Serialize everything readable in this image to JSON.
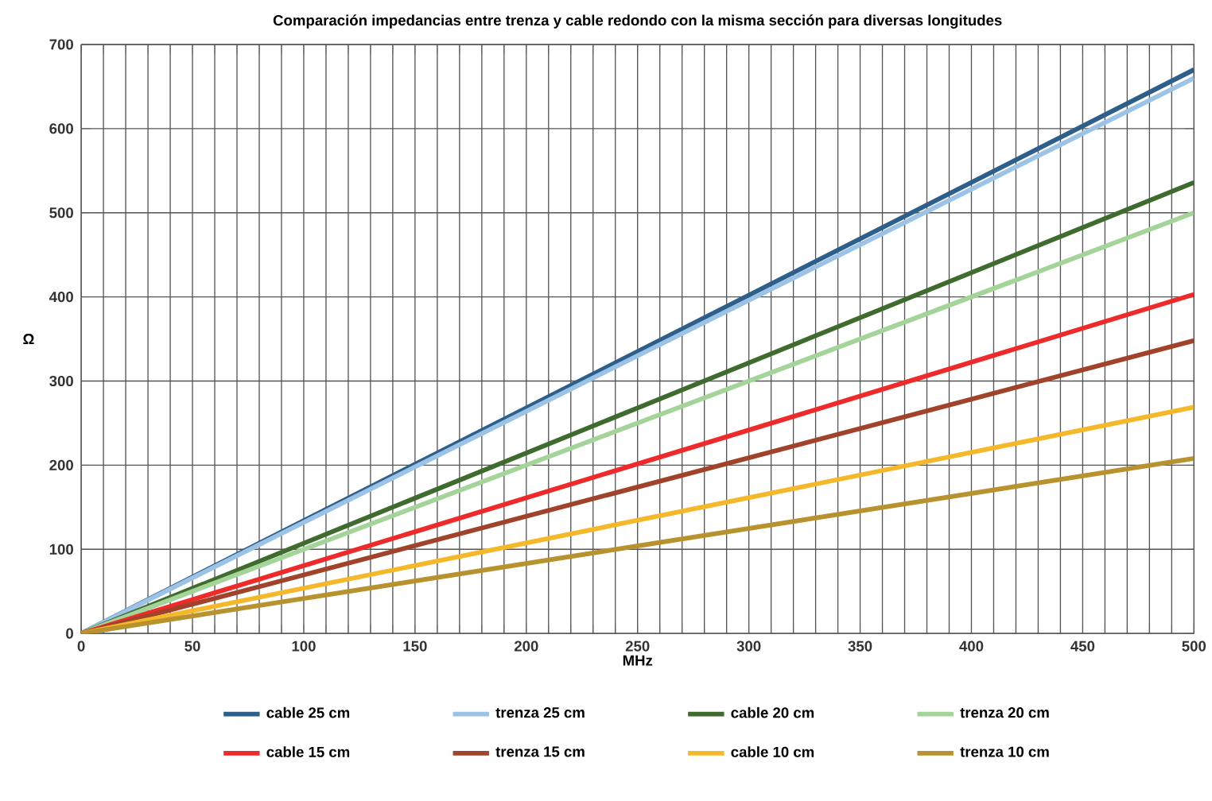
{
  "chart_data": {
    "type": "line",
    "title": "Comparación impedancias entre trenza y cable redondo con la misma sección para diversas longitudes",
    "xlabel": "MHz",
    "ylabel": "Ω",
    "x": [
      0,
      500
    ],
    "series": [
      {
        "name": "cable 25 cm",
        "color": "#2e5f8a",
        "values": [
          0,
          670
        ]
      },
      {
        "name": "trenza 25 cm",
        "color": "#9cc3e5",
        "values": [
          0,
          660
        ]
      },
      {
        "name": "cable 20 cm",
        "color": "#3f6b2f",
        "values": [
          0,
          536
        ]
      },
      {
        "name": "trenza 20 cm",
        "color": "#a5d49a",
        "values": [
          0,
          500
        ]
      },
      {
        "name": "cable 15 cm",
        "color": "#ee2a2a",
        "values": [
          0,
          403
        ]
      },
      {
        "name": "trenza 15 cm",
        "color": "#a0432a",
        "values": [
          0,
          348
        ]
      },
      {
        "name": "cable 10 cm",
        "color": "#f5b82a",
        "values": [
          0,
          269
        ]
      },
      {
        "name": "trenza 10 cm",
        "color": "#b8922e",
        "values": [
          0,
          208
        ]
      }
    ],
    "xlim": [
      0,
      500
    ],
    "ylim": [
      0,
      700
    ],
    "xticks": [
      0,
      {
        "value": 10,
        "label": null
      },
      {
        "value": 20,
        "label": null
      },
      {
        "value": 30,
        "label": null
      },
      {
        "value": 40,
        "label": null
      },
      50,
      {
        "value": 60,
        "label": null
      },
      {
        "value": 70,
        "label": null
      },
      {
        "value": 80,
        "label": null
      },
      {
        "value": 90,
        "label": null
      },
      100,
      {
        "value": 110,
        "label": null
      },
      {
        "value": 120,
        "label": null
      },
      {
        "value": 130,
        "label": null
      },
      {
        "value": 140,
        "label": null
      },
      150,
      {
        "value": 160,
        "label": null
      },
      {
        "value": 170,
        "label": null
      },
      {
        "value": 180,
        "label": null
      },
      {
        "value": 190,
        "label": null
      },
      200,
      {
        "value": 210,
        "label": null
      },
      {
        "value": 220,
        "label": null
      },
      {
        "value": 230,
        "label": null
      },
      {
        "value": 240,
        "label": null
      },
      250,
      {
        "value": 260,
        "label": null
      },
      {
        "value": 270,
        "label": null
      },
      {
        "value": 280,
        "label": null
      },
      {
        "value": 290,
        "label": null
      },
      300,
      {
        "value": 310,
        "label": null
      },
      {
        "value": 320,
        "label": null
      },
      {
        "value": 330,
        "label": null
      },
      {
        "value": 340,
        "label": null
      },
      350,
      {
        "value": 360,
        "label": null
      },
      {
        "value": 370,
        "label": null
      },
      {
        "value": 380,
        "label": null
      },
      {
        "value": 390,
        "label": null
      },
      400,
      {
        "value": 410,
        "label": null
      },
      {
        "value": 420,
        "label": null
      },
      {
        "value": 430,
        "label": null
      },
      {
        "value": 440,
        "label": null
      },
      450,
      {
        "value": 460,
        "label": null
      },
      {
        "value": 470,
        "label": null
      },
      {
        "value": 480,
        "label": null
      },
      {
        "value": 490,
        "label": null
      },
      500
    ],
    "yticks": [
      0,
      100,
      200,
      300,
      400,
      500,
      600,
      700
    ],
    "grid": true,
    "legend": "bottom",
    "marker": "none",
    "line_style": "solid"
  }
}
